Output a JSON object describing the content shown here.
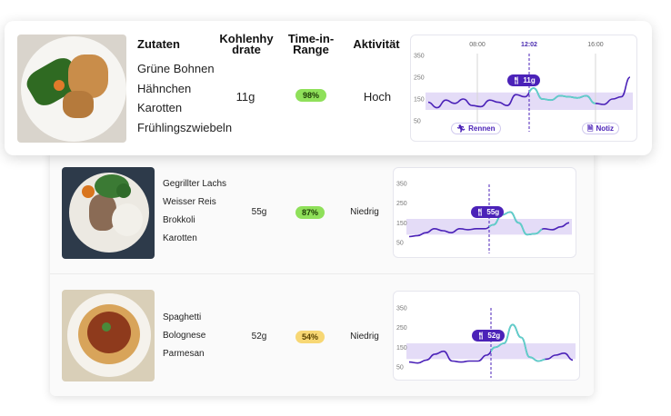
{
  "colors": {
    "accent": "#4b22b8",
    "range_band": "#e4dcf7",
    "line": "#4b22b8",
    "line_in_range": "#5fd0c8",
    "pill_green": "#8fe05a",
    "pill_yellow": "#f7d774"
  },
  "header": {
    "zutaten": "Zutaten",
    "kohlenhydrate_1": "Kohlenhy",
    "kohlenhydrate_2": "drate",
    "tir_1": "Time-in-",
    "tir_2": "Range",
    "aktivitaet": "Aktivität"
  },
  "featured": {
    "ingredients": [
      "Grüne Bohnen",
      "Hähnchen",
      "Karotten",
      "Frühlingszwiebeln"
    ],
    "carbs": "11g",
    "time_in_range": "98%",
    "activity": "Hoch",
    "chart": {
      "y_ticks": [
        "350",
        "250",
        "150",
        "50"
      ],
      "time_ticks": [
        "08:00",
        "12:02",
        "16:00"
      ],
      "marker": "11g",
      "tag_run": "Rennen",
      "tag_note": "Notiz"
    }
  },
  "meals": [
    {
      "ingredients": [
        "Gegrillter Lachs",
        "Weisser Reis",
        "Brokkoli",
        "Karotten"
      ],
      "carbs": "55g",
      "time_in_range": "87%",
      "activity": "Niedrig",
      "chart": {
        "y_ticks": [
          "350",
          "250",
          "150",
          "50"
        ],
        "marker": "55g"
      }
    },
    {
      "ingredients": [
        "Spaghetti",
        "Bolognese",
        "Parmesan"
      ],
      "carbs": "52g",
      "time_in_range": "54%",
      "activity": "Niedrig",
      "chart": {
        "y_ticks": [
          "350",
          "250",
          "150",
          "50"
        ],
        "marker": "52g"
      }
    }
  ],
  "chart_data": [
    {
      "type": "line",
      "y_ticks": [
        350,
        250,
        150,
        50
      ],
      "x_ticks": [
        "08:00",
        "12:02",
        "16:00"
      ],
      "target_range": [
        100,
        180
      ],
      "marker": "11g",
      "series": [
        {
          "values": [
            135,
            110,
            145,
            130,
            150,
            120,
            115,
            145,
            135,
            120,
            170,
            160,
            200,
            150,
            145,
            165,
            160,
            155,
            165,
            130,
            125,
            150,
            160,
            250
          ]
        }
      ]
    },
    {
      "type": "line",
      "y_ticks": [
        350,
        250,
        150,
        50
      ],
      "target_range": [
        90,
        170
      ],
      "marker": "55g",
      "series": [
        {
          "values": [
            80,
            85,
            100,
            120,
            110,
            100,
            120,
            115,
            120,
            120,
            140,
            190,
            205,
            150,
            90,
            95,
            120,
            115,
            130,
            150
          ]
        }
      ]
    },
    {
      "type": "line",
      "y_ticks": [
        350,
        250,
        150,
        50
      ],
      "target_range": [
        90,
        170
      ],
      "marker": "52g",
      "series": [
        {
          "values": [
            75,
            70,
            85,
            115,
            130,
            80,
            75,
            80,
            80,
            110,
            150,
            170,
            265,
            200,
            100,
            80,
            90,
            110,
            120,
            85
          ]
        }
      ]
    }
  ]
}
